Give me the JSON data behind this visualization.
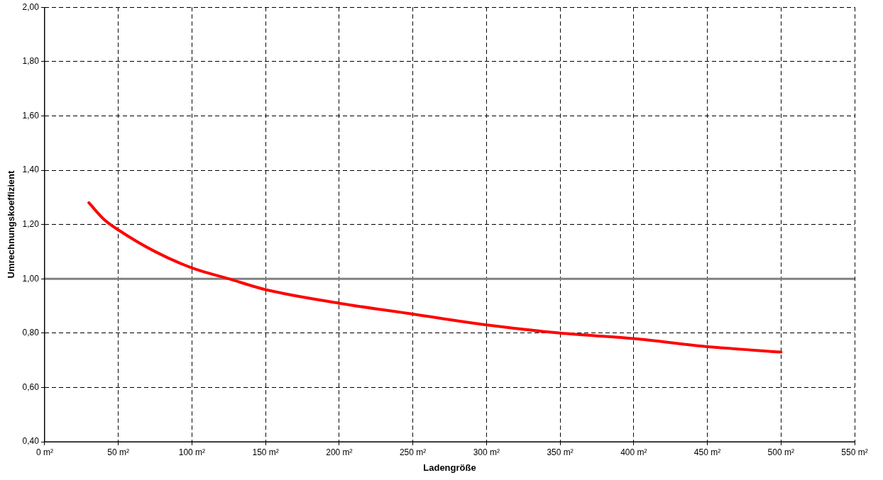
{
  "chart_data": {
    "type": "line",
    "xlabel": "Ladengröße",
    "ylabel": "Umrechnungskoeffizient",
    "x": [
      30,
      40,
      50,
      75,
      100,
      125,
      150,
      200,
      250,
      300,
      350,
      400,
      450,
      500
    ],
    "series": [
      {
        "color": "#ff0000",
        "values": [
          1.28,
          1.22,
          1.18,
          1.1,
          1.04,
          1.0,
          0.96,
          0.91,
          0.87,
          0.83,
          0.8,
          0.78,
          0.75,
          0.73
        ]
      }
    ],
    "xlim": [
      0,
      550
    ],
    "xticks": [
      {
        "value": 0,
        "label": "0 m²"
      },
      {
        "value": 50,
        "label": "50 m²"
      },
      {
        "value": 100,
        "label": "100 m²"
      },
      {
        "value": 150,
        "label": "150 m²"
      },
      {
        "value": 200,
        "label": "200 m²"
      },
      {
        "value": 250,
        "label": "250 m²"
      },
      {
        "value": 300,
        "label": "300 m²"
      },
      {
        "value": 350,
        "label": "350 m²"
      },
      {
        "value": 400,
        "label": "400 m²"
      },
      {
        "value": 450,
        "label": "450 m²"
      },
      {
        "value": 500,
        "label": "500 m²"
      },
      {
        "value": 550,
        "label": "550 m²"
      }
    ],
    "ylim": [
      0.4,
      2.0
    ],
    "yticks": [
      {
        "value": 0.4,
        "label": "0,40"
      },
      {
        "value": 0.6,
        "label": "0,60"
      },
      {
        "value": 0.8,
        "label": "0,80"
      },
      {
        "value": 1.0,
        "label": "1,00"
      },
      {
        "value": 1.2,
        "label": "1,20"
      },
      {
        "value": 1.4,
        "label": "1,40"
      },
      {
        "value": 1.6,
        "label": "1,60"
      },
      {
        "value": 1.8,
        "label": "1,80"
      },
      {
        "value": 2.0,
        "label": "2,00"
      }
    ],
    "ref_lines": [
      {
        "axis": "y",
        "value": 1.0,
        "color": "#808080"
      }
    ],
    "grid": true,
    "legend": false,
    "marker": "none",
    "line_style": "solid"
  }
}
